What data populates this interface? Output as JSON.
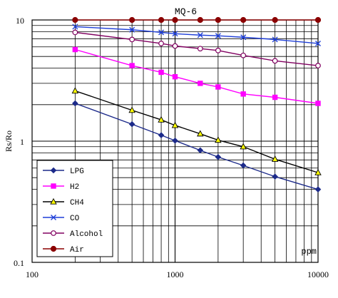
{
  "chart_data": {
    "type": "line",
    "title": "MQ-6",
    "xlabel": "ppm",
    "ylabel": "Rs/Ro",
    "x_scale": "log",
    "y_scale": "log",
    "xlim": [
      100,
      10000
    ],
    "ylim": [
      0.1,
      10
    ],
    "grid": true,
    "legend_placement": "bottom-left",
    "x_ticks": [
      "100",
      "1000",
      "10000"
    ],
    "y_ticks": [
      "10",
      "1",
      "0.1"
    ],
    "series": [
      {
        "name": "LPG",
        "color": "#1c2a8a",
        "marker": "diamond",
        "points": [
          [
            200,
            2.05
          ],
          [
            500,
            1.38
          ],
          [
            800,
            1.12
          ],
          [
            1000,
            1.01
          ],
          [
            1500,
            0.84
          ],
          [
            2000,
            0.74
          ],
          [
            3000,
            0.63
          ],
          [
            5000,
            0.51
          ],
          [
            10000,
            0.4
          ]
        ]
      },
      {
        "name": "H2",
        "color": "#ff00ff",
        "marker": "square",
        "points": [
          [
            200,
            5.7
          ],
          [
            500,
            4.2
          ],
          [
            800,
            3.7
          ],
          [
            1000,
            3.4
          ],
          [
            1500,
            3.0
          ],
          [
            2000,
            2.8
          ],
          [
            3000,
            2.45
          ],
          [
            5000,
            2.3
          ],
          [
            10000,
            2.05
          ]
        ]
      },
      {
        "name": "CH4",
        "color": "#000000",
        "marker": "triangle",
        "markerFill": "#ffff00",
        "points": [
          [
            200,
            2.6
          ],
          [
            500,
            1.8
          ],
          [
            800,
            1.5
          ],
          [
            1000,
            1.35
          ],
          [
            1500,
            1.15
          ],
          [
            2000,
            1.02
          ],
          [
            3000,
            0.9
          ],
          [
            5000,
            0.71
          ],
          [
            10000,
            0.55
          ]
        ]
      },
      {
        "name": "CO",
        "color": "#1f3fd8",
        "marker": "x",
        "points": [
          [
            200,
            8.8
          ],
          [
            500,
            8.3
          ],
          [
            800,
            7.9
          ],
          [
            1000,
            7.7
          ],
          [
            1500,
            7.5
          ],
          [
            2000,
            7.4
          ],
          [
            3000,
            7.2
          ],
          [
            5000,
            6.9
          ],
          [
            10000,
            6.4
          ]
        ]
      },
      {
        "name": "Alcohol",
        "color": "#800060",
        "marker": "circle-open",
        "points": [
          [
            200,
            7.9
          ],
          [
            500,
            6.9
          ],
          [
            800,
            6.4
          ],
          [
            1000,
            6.1
          ],
          [
            1500,
            5.8
          ],
          [
            2000,
            5.6
          ],
          [
            3000,
            5.1
          ],
          [
            5000,
            4.6
          ],
          [
            10000,
            4.2
          ]
        ]
      },
      {
        "name": "Air",
        "color": "#8b0000",
        "marker": "circle-filled",
        "points": [
          [
            200,
            10
          ],
          [
            500,
            10
          ],
          [
            800,
            10
          ],
          [
            1000,
            10
          ],
          [
            1500,
            10
          ],
          [
            2000,
            10
          ],
          [
            3000,
            10
          ],
          [
            5000,
            10
          ],
          [
            10000,
            10
          ]
        ]
      }
    ]
  }
}
